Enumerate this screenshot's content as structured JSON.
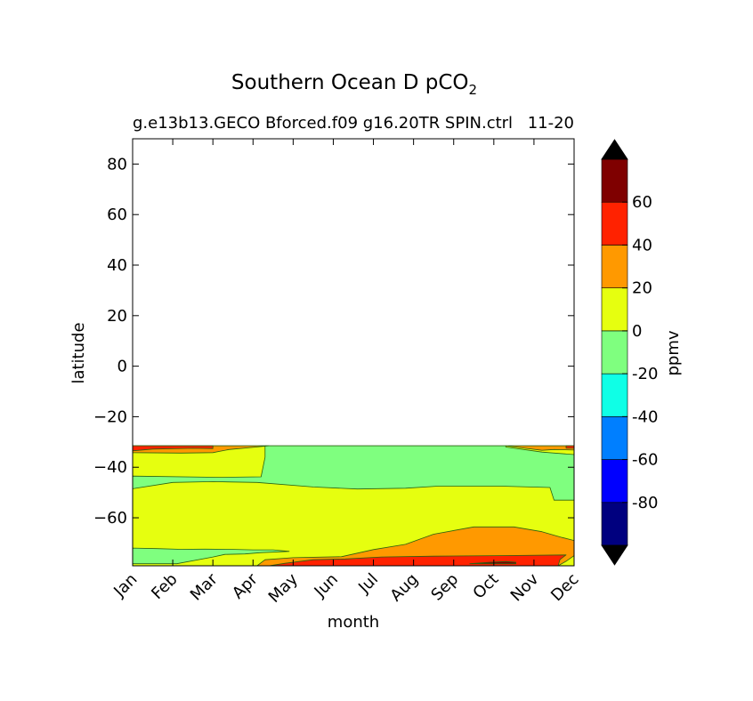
{
  "chart_data": {
    "type": "contourf",
    "title": "Southern Ocean D pCO",
    "title_subscript": "2",
    "subtitle_left": "g.e13b13.GECO Bforced.f09 g16.20TR SPIN.ctrl",
    "subtitle_right": "11-20",
    "xlabel": "month",
    "ylabel": "latitude",
    "x_ticks": [
      "Jan",
      "Feb",
      "Mar",
      "Apr",
      "May",
      "Jun",
      "Jul",
      "Aug",
      "Sep",
      "Oct",
      "Nov",
      "Dec"
    ],
    "y_ticks": [
      80,
      60,
      40,
      20,
      0,
      -20,
      -40,
      -60
    ],
    "y_tick_labels": [
      "80",
      "60",
      "40",
      "20",
      "0",
      "−20",
      "−40",
      "−60"
    ],
    "ylim": [
      -79,
      90
    ],
    "xlim": [
      1,
      12
    ],
    "data_lat_range": [
      -79,
      -31.5
    ],
    "colorbar": {
      "label": "ppmv",
      "levels": [
        -100,
        -80,
        -60,
        -40,
        -20,
        0,
        20,
        40,
        60,
        80
      ],
      "tick_values": [
        60,
        40,
        20,
        0,
        -20,
        -40,
        -60,
        -80
      ],
      "tick_labels": [
        "60",
        "40",
        "20",
        "0",
        "-20",
        "-40",
        "-60",
        "-80"
      ],
      "colors": [
        "#00007f",
        "#0000ff",
        "#007fff",
        "#0fffe6",
        "#7fff7f",
        "#e6ff0f",
        "#ff9900",
        "#ff2200",
        "#7f0000"
      ],
      "extend_low_color": "#000000",
      "extend_high_color": "#000000"
    },
    "fill_regions": [
      {
        "range": "-20 to 0",
        "color": "#7fff7f"
      },
      {
        "range": "0 to 20",
        "color": "#e6ff0f"
      },
      {
        "range": "20 to 40",
        "color": "#ff9900"
      },
      {
        "range": "40 to 60",
        "color": "#ff2200"
      },
      {
        "range": "60 to 80",
        "color": "#7f0000"
      }
    ],
    "contour_line_color": "#2a6010",
    "regions": [
      {
        "level": "0 to 20",
        "points": [
          [
            1,
            -31.5
          ],
          [
            12,
            -31.5
          ],
          [
            12,
            -79
          ],
          [
            1,
            -79
          ]
        ]
      },
      {
        "level": "-20 to 0",
        "points": [
          [
            4.3,
            -31.5
          ],
          [
            10.3,
            -31.5
          ],
          [
            10.3,
            -32
          ],
          [
            11.2,
            -34
          ],
          [
            12,
            -35
          ],
          [
            12,
            -53
          ],
          [
            11.5,
            -53
          ],
          [
            11.4,
            -48
          ],
          [
            10.2,
            -47.5
          ],
          [
            8.6,
            -47.5
          ],
          [
            7.8,
            -48.3
          ],
          [
            6.6,
            -48.6
          ],
          [
            5.5,
            -47.8
          ],
          [
            4.1,
            -46
          ],
          [
            3,
            -45.7
          ],
          [
            2,
            -46
          ],
          [
            1,
            -48.5
          ],
          [
            1,
            -43.5
          ],
          [
            3.2,
            -44
          ],
          [
            4.2,
            -43.8
          ],
          [
            4.3,
            -36
          ]
        ]
      },
      {
        "level": "-20 to 0",
        "points": [
          [
            1,
            -72
          ],
          [
            1.6,
            -72.2
          ],
          [
            2.2,
            -72.5
          ],
          [
            2.8,
            -72.4
          ],
          [
            3.4,
            -72.5
          ],
          [
            4,
            -72.7
          ],
          [
            4.5,
            -72.7
          ],
          [
            4.9,
            -73.3
          ],
          [
            4.2,
            -73.8
          ],
          [
            3.8,
            -74.3
          ],
          [
            3.3,
            -74.5
          ],
          [
            3,
            -75.5
          ],
          [
            2.1,
            -78.2
          ],
          [
            1,
            -78.2
          ]
        ]
      },
      {
        "level": "20 to 40",
        "points": [
          [
            1,
            -31.5
          ],
          [
            2,
            -31.5
          ],
          [
            3.3,
            -31.5
          ],
          [
            4.4,
            -31.5
          ],
          [
            3.4,
            -33
          ],
          [
            3.0,
            -34.2
          ],
          [
            2.2,
            -34.4
          ],
          [
            1,
            -34.2
          ]
        ]
      },
      {
        "level": "20 to 40",
        "points": [
          [
            10.3,
            -31.5
          ],
          [
            12,
            -31.5
          ],
          [
            12,
            -33.2
          ],
          [
            11.5,
            -33
          ],
          [
            11.2,
            -33.3
          ]
        ]
      },
      {
        "level": "20 to 40",
        "points": [
          [
            4.1,
            -79
          ],
          [
            4.3,
            -76.6
          ],
          [
            5,
            -75.8
          ],
          [
            6.2,
            -75.4
          ],
          [
            7.0,
            -72.6
          ],
          [
            7.8,
            -70.5
          ],
          [
            8.5,
            -66.5
          ],
          [
            9.5,
            -63.6
          ],
          [
            10.5,
            -63.6
          ],
          [
            11.2,
            -65.5
          ],
          [
            11.7,
            -67.8
          ],
          [
            12,
            -69
          ],
          [
            12,
            -75
          ],
          [
            11.8,
            -77.2
          ],
          [
            11.6,
            -79
          ]
        ]
      },
      {
        "level": "40 to 60",
        "points": [
          [
            1,
            -31.5
          ],
          [
            3,
            -31.5
          ],
          [
            3,
            -32.6
          ],
          [
            2.5,
            -32.5
          ],
          [
            1.5,
            -32.8
          ],
          [
            1,
            -33.5
          ]
        ]
      },
      {
        "level": "40 to 60",
        "points": [
          [
            11.8,
            -31.5
          ],
          [
            12,
            -31.5
          ],
          [
            12,
            -32.5
          ],
          [
            11.8,
            -32.5
          ]
        ]
      },
      {
        "level": "40 to 60",
        "points": [
          [
            4.4,
            -79
          ],
          [
            4.8,
            -78
          ],
          [
            5.5,
            -76.6
          ],
          [
            6.3,
            -76.3
          ],
          [
            7.2,
            -75.5
          ],
          [
            8.5,
            -75.2
          ],
          [
            10.1,
            -75
          ],
          [
            11.8,
            -74.7
          ],
          [
            11.65,
            -76.5
          ],
          [
            11.6,
            -79
          ]
        ]
      },
      {
        "level": "60 to 80",
        "points": [
          [
            9.4,
            -78.2
          ],
          [
            9.9,
            -77.6
          ],
          [
            10.3,
            -77.3
          ],
          [
            10.55,
            -77.6
          ],
          [
            10.55,
            -78.2
          ]
        ]
      }
    ]
  }
}
